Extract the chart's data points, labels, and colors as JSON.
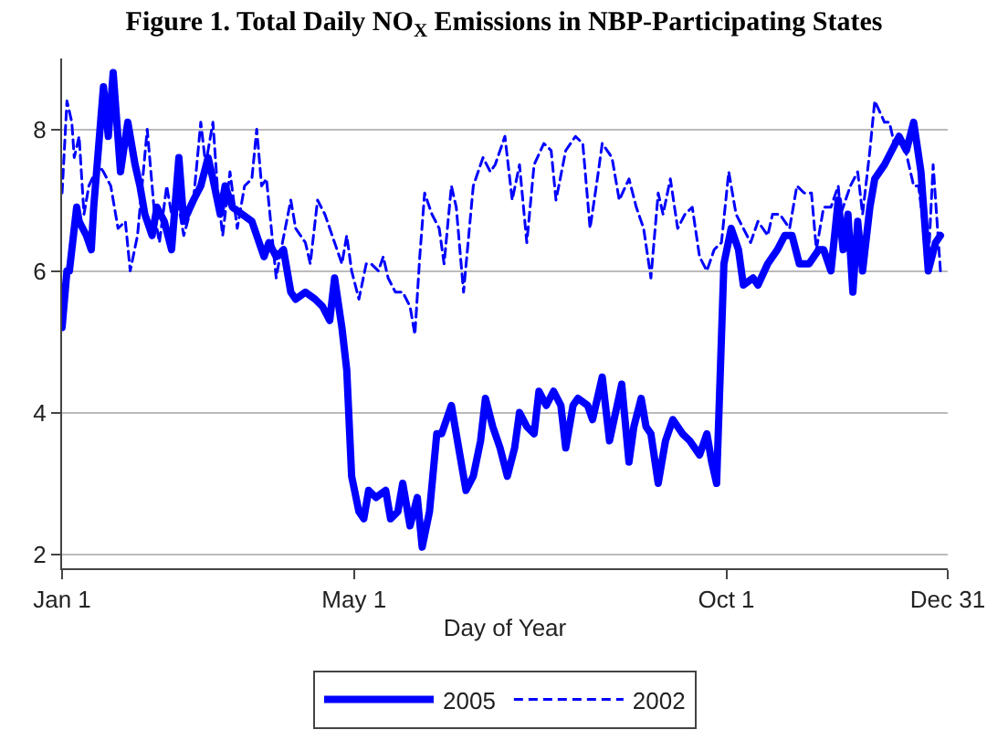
{
  "chart_data": {
    "type": "line",
    "title": "Figure 1. Total Daily NO$_{X}$ Emissions in NBP-Participating States",
    "xlabel": "Day of Year",
    "xlim": [
      "--01-01",
      "--12-31"
    ],
    "xticks": [
      {
        "value": "--01-01",
        "label": "Jan 1"
      },
      {
        "value": "--05-01",
        "label": "May 1"
      },
      {
        "value": "--10-01",
        "label": "Oct 1"
      },
      {
        "value": "--12-31",
        "label": "Dec 31"
      }
    ],
    "ylim": [
      1.8,
      9
    ],
    "yticks": [
      2,
      4,
      6,
      8
    ],
    "grid": "y",
    "legend": "bottom",
    "series": [
      {
        "name": "2005",
        "color": "#0000ff",
        "line_style": "solid",
        "x": [
          "--01-01",
          "--01-03",
          "--01-04",
          "--01-07",
          "--01-08",
          "--01-11",
          "--01-13",
          "--01-14",
          "--01-18",
          "--01-20",
          "--01-22",
          "--01-25",
          "--01-28",
          "--01-31",
          "--02-02",
          "--02-04",
          "--02-07",
          "--02-09",
          "--02-12",
          "--02-15",
          "--02-18",
          "--02-20",
          "--02-24",
          "--02-27",
          "--03-02",
          "--03-04",
          "--03-07",
          "--03-09",
          "--03-12",
          "--03-16",
          "--03-20",
          "--03-22",
          "--03-25",
          "--03-27",
          "--03-30",
          "--04-02",
          "--04-05",
          "--04-07",
          "--04-11",
          "--04-15",
          "--04-18",
          "--04-21",
          "--04-23",
          "--04-26",
          "--04-28",
          "--04-30",
          "--05-03",
          "--05-05",
          "--05-07",
          "--05-10",
          "--05-14",
          "--05-16",
          "--05-19",
          "--05-21",
          "--05-24",
          "--05-27",
          "--05-29",
          "--06-01",
          "--06-04",
          "--06-06",
          "--06-10",
          "--06-13",
          "--06-16",
          "--06-19",
          "--06-22",
          "--06-24",
          "--06-27",
          "--06-30",
          "--07-03",
          "--07-06",
          "--07-08",
          "--07-11",
          "--07-14",
          "--07-16",
          "--07-19",
          "--07-22",
          "--07-25",
          "--07-27",
          "--07-30",
          "--08-01",
          "--08-05",
          "--08-07",
          "--08-11",
          "--08-14",
          "--08-19",
          "--08-22",
          "--08-24",
          "--08-27",
          "--08-29",
          "--08-31",
          "--09-03",
          "--09-06",
          "--09-09",
          "--09-13",
          "--09-16",
          "--09-20",
          "--09-23",
          "--09-25",
          "--09-27",
          "--09-30",
          "--10-03",
          "--10-06",
          "--10-08",
          "--10-12",
          "--10-14",
          "--10-18",
          "--10-22",
          "--10-25",
          "--10-28",
          "--10-31",
          "--11-04",
          "--11-08",
          "--11-10",
          "--11-13",
          "--11-16",
          "--11-18",
          "--11-20",
          "--11-22",
          "--11-24",
          "--11-26",
          "--11-29",
          "--12-01",
          "--12-05",
          "--12-08",
          "--12-11",
          "--12-14",
          "--12-17",
          "--12-20",
          "--12-23",
          "--12-26",
          "--12-28"
        ],
        "values": [
          5.2,
          6.0,
          6.0,
          6.9,
          6.7,
          6.5,
          6.3,
          6.9,
          8.6,
          7.9,
          8.8,
          7.4,
          8.1,
          7.5,
          7.2,
          6.8,
          6.5,
          6.9,
          6.7,
          6.3,
          7.6,
          6.7,
          7.0,
          7.2,
          7.6,
          7.3,
          6.8,
          7.2,
          6.9,
          6.8,
          6.7,
          6.5,
          6.2,
          6.4,
          6.2,
          6.3,
          5.7,
          5.6,
          5.7,
          5.6,
          5.5,
          5.3,
          5.9,
          5.2,
          4.6,
          3.1,
          2.6,
          2.5,
          2.9,
          2.8,
          2.9,
          2.5,
          2.6,
          3.0,
          2.4,
          2.8,
          2.1,
          2.6,
          3.7,
          3.7,
          4.1,
          3.5,
          2.9,
          3.1,
          3.6,
          4.2,
          3.8,
          3.5,
          3.1,
          3.5,
          4.0,
          3.8,
          3.7,
          4.3,
          4.1,
          4.3,
          4.1,
          3.5,
          4.1,
          4.2,
          4.1,
          3.9,
          4.5,
          3.6,
          4.4,
          3.3,
          3.8,
          4.2,
          3.8,
          3.7,
          3.0,
          3.6,
          3.9,
          3.7,
          3.6,
          3.4,
          3.7,
          3.3,
          3.0,
          6.1,
          6.6,
          6.3,
          5.8,
          5.9,
          5.8,
          6.1,
          6.3,
          6.5,
          6.5,
          6.1,
          6.1,
          6.3,
          6.3,
          6.0,
          7.0,
          6.3,
          6.8,
          5.7,
          6.7,
          6.0,
          6.9,
          7.3,
          7.5,
          7.7,
          7.9,
          7.7,
          8.1,
          7.4,
          6.0,
          6.4,
          6.5
        ]
      },
      {
        "name": "2002",
        "color": "#0000ff",
        "line_style": "dashed",
        "x": [
          "--01-01",
          "--01-03",
          "--01-05",
          "--01-06",
          "--01-08",
          "--01-10",
          "--01-12",
          "--01-16",
          "--01-18",
          "--01-21",
          "--01-24",
          "--01-27",
          "--01-29",
          "--02-01",
          "--02-05",
          "--02-08",
          "--02-10",
          "--02-13",
          "--02-15",
          "--02-18",
          "--02-20",
          "--02-24",
          "--02-27",
          "--03-01",
          "--03-04",
          "--03-06",
          "--03-08",
          "--03-11",
          "--03-14",
          "--03-17",
          "--03-20",
          "--03-22",
          "--03-24",
          "--03-26",
          "--03-30",
          "--04-01",
          "--04-05",
          "--04-07",
          "--04-11",
          "--04-13",
          "--04-16",
          "--04-19",
          "--04-23",
          "--04-26",
          "--04-28",
          "--04-30",
          "--05-03",
          "--05-06",
          "--05-08",
          "--05-11",
          "--05-13",
          "--05-15",
          "--05-18",
          "--05-21",
          "--05-24",
          "--05-26",
          "--05-28",
          "--05-30",
          "--06-02",
          "--06-05",
          "--06-07",
          "--06-10",
          "--06-12",
          "--06-15",
          "--06-19",
          "--06-23",
          "--06-26",
          "--06-28",
          "--07-02",
          "--07-05",
          "--07-08",
          "--07-11",
          "--07-14",
          "--07-18",
          "--07-21",
          "--07-23",
          "--07-27",
          "--07-31",
          "--08-03",
          "--08-06",
          "--08-09",
          "--08-11",
          "--08-15",
          "--08-18",
          "--08-22",
          "--08-25",
          "--08-28",
          "--08-31",
          "--09-03",
          "--09-05",
          "--09-08",
          "--09-11",
          "--09-14",
          "--09-17",
          "--09-20",
          "--09-23",
          "--09-26",
          "--09-29",
          "--10-02",
          "--10-05",
          "--10-08",
          "--10-11",
          "--10-14",
          "--10-18",
          "--10-20",
          "--10-23",
          "--10-27",
          "--10-30",
          "--11-02",
          "--11-05",
          "--11-07",
          "--11-10",
          "--11-13",
          "--11-16",
          "--11-17",
          "--11-21",
          "--11-24",
          "--11-26",
          "--11-29",
          "--12-01",
          "--12-05",
          "--12-07",
          "--12-09",
          "--12-13",
          "--12-17",
          "--12-19",
          "--12-23",
          "--12-25",
          "--12-28"
        ],
        "values": [
          7.1,
          8.4,
          8.1,
          7.6,
          7.9,
          6.8,
          7.2,
          7.5,
          7.4,
          7.2,
          6.6,
          6.7,
          6.0,
          6.5,
          8.0,
          6.8,
          6.4,
          7.2,
          6.8,
          6.9,
          6.5,
          7.0,
          8.1,
          7.5,
          8.1,
          7.1,
          6.5,
          7.4,
          6.6,
          7.2,
          7.3,
          8.0,
          7.2,
          7.3,
          5.9,
          6.3,
          7.0,
          6.6,
          6.4,
          6.1,
          7.0,
          6.8,
          6.4,
          6.1,
          6.5,
          6.0,
          5.6,
          6.1,
          6.1,
          6.0,
          6.2,
          5.9,
          5.7,
          5.7,
          5.5,
          5.1,
          6.2,
          7.1,
          6.8,
          6.6,
          6.1,
          7.2,
          6.9,
          5.7,
          7.2,
          7.6,
          7.4,
          7.5,
          7.9,
          7.0,
          7.5,
          6.4,
          7.5,
          7.8,
          7.7,
          7.0,
          7.7,
          7.9,
          7.8,
          6.6,
          7.3,
          7.8,
          7.6,
          7.0,
          7.3,
          6.9,
          6.6,
          5.9,
          7.1,
          6.8,
          7.3,
          6.6,
          6.8,
          6.9,
          6.2,
          6.0,
          6.3,
          6.4,
          7.4,
          6.8,
          6.6,
          6.4,
          6.7,
          6.5,
          6.8,
          6.8,
          6.6,
          7.2,
          7.1,
          7.1,
          6.3,
          6.9,
          6.9,
          7.2,
          6.8,
          7.2,
          7.4,
          6.8,
          7.7,
          8.4,
          8.1,
          8.1,
          7.8,
          7.8,
          7.2,
          7.2,
          6.1,
          7.5,
          6.0
        ]
      }
    ]
  }
}
